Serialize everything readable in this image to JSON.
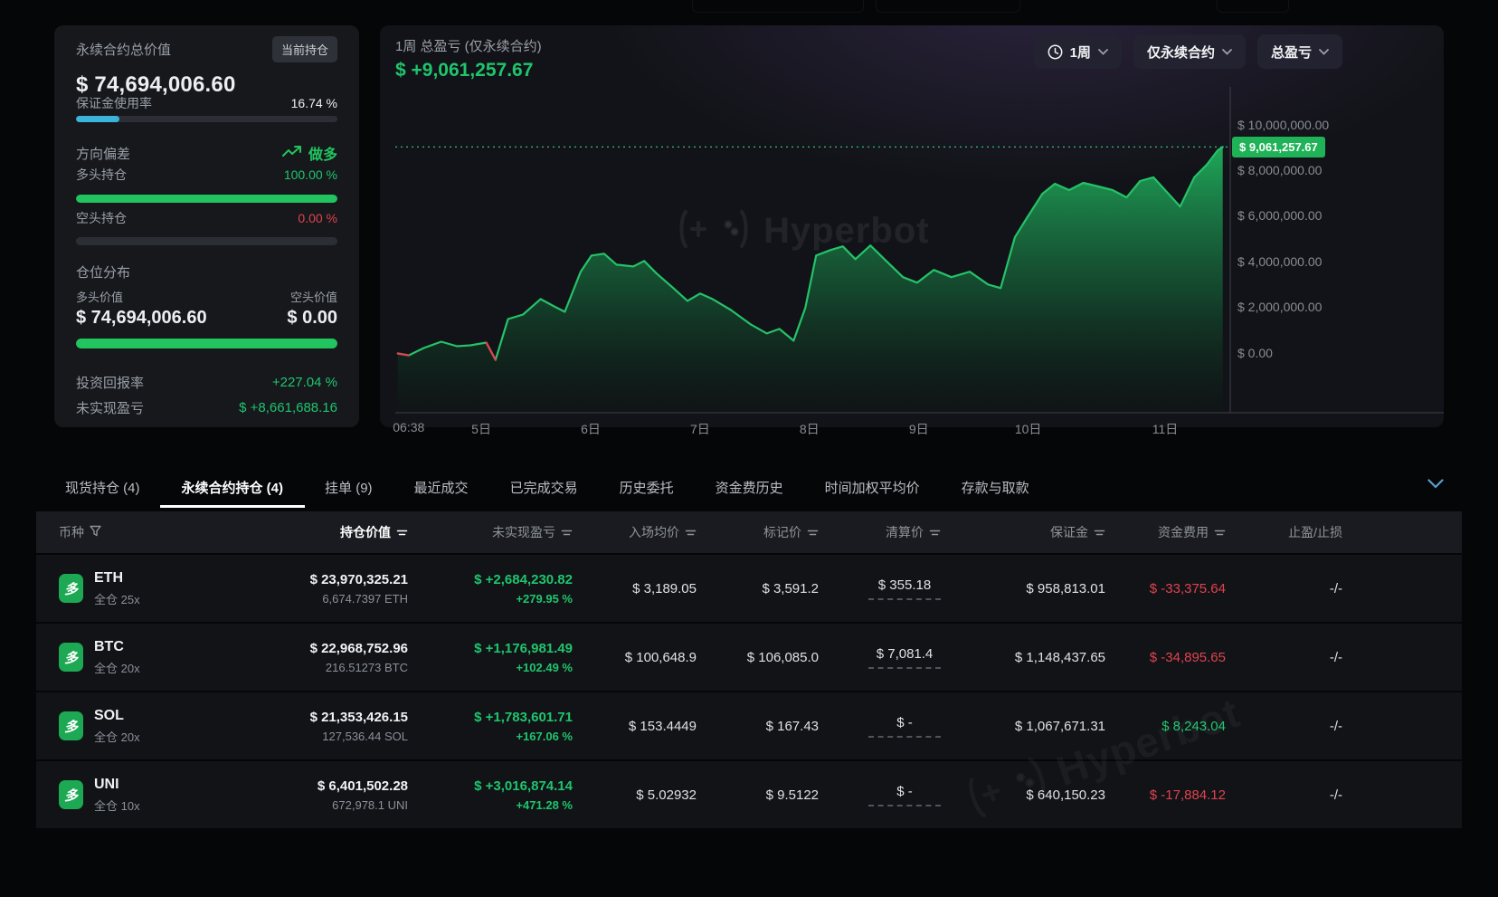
{
  "colors": {
    "green_text": "#1fc56d",
    "green_bar": "#21c45e",
    "red": "#e0434f",
    "cyan": "#3cb4da",
    "badge_green": "#1fb257"
  },
  "left_panel": {
    "title": "永续合约总价值",
    "badge": "当前持仓",
    "total_value": "$ 74,694,006.60",
    "margin": {
      "label": "保证金使用率",
      "value": "16.74 %",
      "pct": 16.74
    },
    "direction": {
      "title": "方向偏差",
      "bias_label": "做多",
      "long_label": "多头持仓",
      "long_value": "100.00 %",
      "long_pct": 100,
      "short_label": "空头持仓",
      "short_value": "0.00 %",
      "short_pct": 0
    },
    "distribution": {
      "title": "仓位分布",
      "long_label": "多头价值",
      "long_value": "$ 74,694,006.60",
      "short_label": "空头价值",
      "short_value": "$ 0.00",
      "long_pct": 100
    },
    "roi": {
      "label": "投资回报率",
      "value": "+227.04 %"
    },
    "upnl": {
      "label": "未实现盈亏",
      "value": "$ +8,661,688.16"
    }
  },
  "chart_panel": {
    "title": "1周 总盈亏 (仅永续合约)",
    "value": "$ +9,061,257.67",
    "buttons": {
      "period": "1周",
      "scope": "仅永续合约",
      "metric": "总盈亏"
    },
    "watermark": "Hyperbot"
  },
  "chart_data": {
    "type": "area",
    "title": "1周 总盈亏 (仅永续合约)",
    "legend": "总盈亏",
    "current_value": 9061257.67,
    "current_label": "$ 9,061,257.67",
    "ylim": [
      -2600000,
      11700000
    ],
    "y_ticks": [
      {
        "label": "$ 10,000,000.00",
        "value": 10000000
      },
      {
        "label": "$ 8,000,000.00",
        "value": 8000000
      },
      {
        "label": "$ 6,000,000.00",
        "value": 6000000
      },
      {
        "label": "$ 4,000,000.00",
        "value": 4000000
      },
      {
        "label": "$ 2,000,000.00",
        "value": 2000000
      },
      {
        "label": "$ 0.00",
        "value": 0
      }
    ],
    "x_ticks": [
      {
        "label": "06:38",
        "pos": 0.016
      },
      {
        "label": "5日",
        "pos": 0.103
      },
      {
        "label": "6日",
        "pos": 0.234
      },
      {
        "label": "7日",
        "pos": 0.365
      },
      {
        "label": "8日",
        "pos": 0.496
      },
      {
        "label": "9日",
        "pos": 0.627
      },
      {
        "label": "10日",
        "pos": 0.758
      },
      {
        "label": "11日",
        "pos": 0.922
      }
    ],
    "series": [
      {
        "name": "总盈亏",
        "t": [
          0.003,
          0.016,
          0.034,
          0.055,
          0.074,
          0.09,
          0.109,
          0.12,
          0.135,
          0.153,
          0.174,
          0.19,
          0.203,
          0.222,
          0.235,
          0.25,
          0.265,
          0.285,
          0.298,
          0.313,
          0.333,
          0.35,
          0.365,
          0.38,
          0.402,
          0.426,
          0.445,
          0.46,
          0.477,
          0.491,
          0.504,
          0.521,
          0.536,
          0.551,
          0.569,
          0.588,
          0.608,
          0.625,
          0.645,
          0.666,
          0.688,
          0.71,
          0.725,
          0.742,
          0.757,
          0.775,
          0.79,
          0.807,
          0.824,
          0.842,
          0.859,
          0.876,
          0.892,
          0.908,
          0.924,
          0.94,
          0.957,
          0.972,
          0.985,
          0.991
        ],
        "v": [
          0,
          -80000,
          240000,
          520000,
          320000,
          360000,
          480000,
          -280000,
          1510000,
          1710000,
          2390000,
          2070000,
          1830000,
          3590000,
          4300000,
          4380000,
          3900000,
          3820000,
          4060000,
          3510000,
          2870000,
          2310000,
          2630000,
          2390000,
          1910000,
          1270000,
          880000,
          1080000,
          560000,
          1990000,
          4300000,
          4540000,
          4700000,
          4140000,
          4740000,
          4060000,
          3350000,
          3110000,
          3670000,
          3350000,
          3590000,
          3030000,
          2870000,
          5100000,
          5980000,
          7010000,
          7450000,
          7170000,
          7490000,
          7330000,
          7170000,
          6850000,
          7570000,
          7730000,
          7090000,
          6450000,
          7730000,
          8290000,
          8920000,
          9061257.67
        ]
      }
    ],
    "red_segments": [
      [
        0,
        1
      ],
      [
        6,
        7
      ]
    ],
    "line_color": "#25c268",
    "red_color": "#e0434f"
  },
  "tabs": {
    "items": [
      {
        "label": "现货持仓 (4)"
      },
      {
        "label": "永续合约持仓 (4)",
        "active": true
      },
      {
        "label": "挂单 (9)"
      },
      {
        "label": "最近成交"
      },
      {
        "label": "已完成交易"
      },
      {
        "label": "历史委托"
      },
      {
        "label": "资金费历史"
      },
      {
        "label": "时间加权平均价"
      },
      {
        "label": "存款与取款"
      }
    ]
  },
  "table": {
    "columns": [
      {
        "label": "币种"
      },
      {
        "label": "持仓价值"
      },
      {
        "label": "未实现盈亏"
      },
      {
        "label": "入场均价"
      },
      {
        "label": "标记价"
      },
      {
        "label": "清算价"
      },
      {
        "label": "保证金"
      },
      {
        "label": "资金费用"
      },
      {
        "label": "止盈/止损"
      }
    ],
    "rows": [
      {
        "side": "多",
        "coin": "ETH",
        "leverage": "全仓 25x",
        "value": "$ 23,970,325.21",
        "amount": "6,674.7397 ETH",
        "upnl": "$ +2,684,230.82",
        "upnl_pct": "+279.95 %",
        "entry": "$ 3,189.05",
        "mark": "$ 3,591.2",
        "liq": "$ 355.18",
        "margin": "$ 958,813.01",
        "funding": "$ -33,375.64",
        "tpsl": "-/-"
      },
      {
        "side": "多",
        "coin": "BTC",
        "leverage": "全仓 20x",
        "value": "$ 22,968,752.96",
        "amount": "216.51273 BTC",
        "upnl": "$ +1,176,981.49",
        "upnl_pct": "+102.49 %",
        "entry": "$ 100,648.9",
        "mark": "$ 106,085.0",
        "liq": "$ 7,081.4",
        "margin": "$ 1,148,437.65",
        "funding": "$ -34,895.65",
        "tpsl": "-/-"
      },
      {
        "side": "多",
        "coin": "SOL",
        "leverage": "全仓 20x",
        "value": "$ 21,353,426.15",
        "amount": "127,536.44 SOL",
        "upnl": "$ +1,783,601.71",
        "upnl_pct": "+167.06 %",
        "entry": "$ 153.4449",
        "mark": "$ 167.43",
        "liq": "$ -",
        "margin": "$ 1,067,671.31",
        "funding": "$ 8,243.04",
        "tpsl": "-/-"
      },
      {
        "side": "多",
        "coin": "UNI",
        "leverage": "全仓 10x",
        "value": "$ 6,401,502.28",
        "amount": "672,978.1 UNI",
        "upnl": "$ +3,016,874.14",
        "upnl_pct": "+471.28 %",
        "entry": "$ 5.02932",
        "mark": "$ 9.5122",
        "liq": "$ -",
        "margin": "$ 640,150.23",
        "funding": "$ -17,884.12",
        "tpsl": "-/-"
      }
    ]
  }
}
